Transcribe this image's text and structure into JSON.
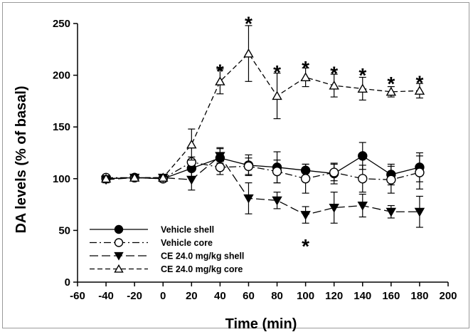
{
  "chart_data": {
    "type": "line",
    "xlabel": "Time (min)",
    "ylabel": "DA levels (% of basal)",
    "xlim": [
      -60,
      200
    ],
    "ylim": [
      0,
      250
    ],
    "x_ticks": [
      -60,
      -40,
      -20,
      0,
      20,
      40,
      60,
      80,
      100,
      120,
      140,
      160,
      180,
      200
    ],
    "y_ticks": [
      0,
      50,
      100,
      150,
      200,
      250
    ],
    "x_tick_labels": [
      "-60",
      "-40",
      "-20",
      "0",
      "20",
      "40",
      "60",
      "80",
      "100",
      "120",
      "140",
      "160",
      "180",
      "200"
    ],
    "y_tick_labels": [
      "0",
      "50",
      "100",
      "150",
      "200",
      "250"
    ],
    "x": [
      -40,
      -20,
      0,
      20,
      40,
      60,
      80,
      100,
      120,
      140,
      160,
      180
    ],
    "series": [
      {
        "name": "Vehicle shell",
        "marker": "filled-circle",
        "line": "solid",
        "values": [
          100,
          101,
          100,
          110,
          120,
          113,
          111,
          108,
          105,
          122,
          104,
          111
        ],
        "error": [
          3,
          3,
          3,
          8,
          10,
          10,
          15,
          6,
          10,
          13,
          10,
          14
        ]
      },
      {
        "name": "Vehicle core",
        "marker": "open-circle",
        "line": "dash-dot",
        "values": [
          101,
          101,
          100,
          116,
          111,
          112,
          107,
          100,
          106,
          100,
          99,
          106
        ],
        "error": [
          3,
          3,
          3,
          5,
          7,
          8,
          11,
          14,
          8,
          13,
          13,
          16
        ]
      },
      {
        "name": "CE 24.0 mg/kg shell",
        "marker": "filled-triangle-down",
        "line": "long-dash",
        "values": [
          99,
          101,
          101,
          99,
          122,
          81,
          79,
          65,
          72,
          74,
          68,
          68
        ],
        "error": [
          3,
          3,
          3,
          10,
          7,
          15,
          8,
          8,
          15,
          11,
          6,
          15
        ]
      },
      {
        "name": "CE 24.0 mg/kg core",
        "marker": "open-triangle-up",
        "line": "dashed",
        "values": [
          100,
          101,
          101,
          133,
          194,
          221,
          180,
          198,
          190,
          187,
          184,
          185
        ],
        "error": [
          3,
          3,
          3,
          15,
          12,
          27,
          22,
          9,
          11,
          11,
          5,
          7
        ]
      }
    ],
    "annotations": [
      {
        "text": "*",
        "x": 40,
        "y": 207
      },
      {
        "text": "*",
        "x": 60,
        "y": 253
      },
      {
        "text": "*",
        "x": 80,
        "y": 206
      },
      {
        "text": "*",
        "x": 100,
        "y": 210
      },
      {
        "text": "*",
        "x": 120,
        "y": 205
      },
      {
        "text": "*",
        "x": 140,
        "y": 203
      },
      {
        "text": "*",
        "x": 160,
        "y": 195
      },
      {
        "text": "*",
        "x": 180,
        "y": 196
      },
      {
        "text": "*",
        "x": 100,
        "y": 38
      }
    ],
    "legend": {
      "position": "bottom-left",
      "entries": [
        "Vehicle shell",
        "Vehicle core",
        "CE 24.0 mg/kg shell",
        "CE 24.0 mg/kg core"
      ]
    },
    "grid": false,
    "colors": {
      "line": "#000000",
      "background": "#ffffff",
      "frame": "#9a9a9a"
    }
  }
}
